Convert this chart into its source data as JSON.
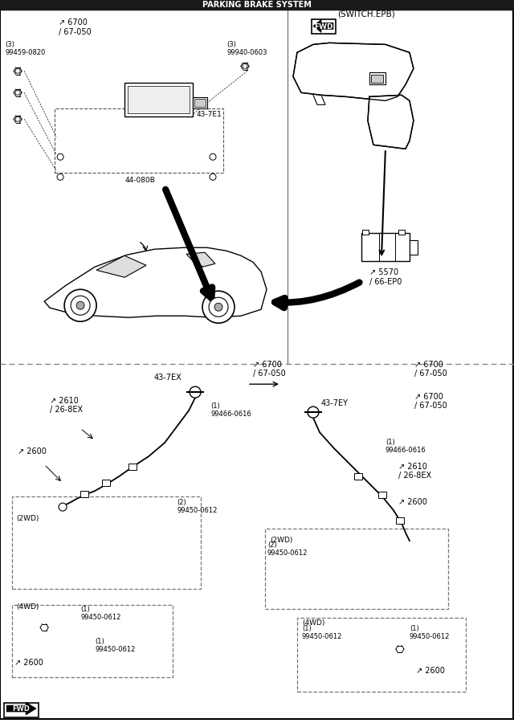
{
  "title": "PARKING BRAKE SYSTEM",
  "bg_color": "#ffffff",
  "line_color": "#000000",
  "header_bg": "#1a1a1a",
  "header_text": "#ffffff",
  "fig_width": 6.4,
  "fig_height": 9.0,
  "labels": {
    "switch_epb": "(SWITCH.EPB)",
    "part_6700_tl": "6700\n/ 67-050",
    "part_5570": "5570\n/ 66-EP0",
    "part_99459": "99459-0820",
    "part_99940": "99940-0603",
    "part_43_7e1": "43-7E1",
    "part_44_080b": "44-080B",
    "part_43_7ex": "43-7EX",
    "part_43_7ey": "43-7EY",
    "part_6700_lc": "6700\n/ 67-050",
    "part_6700_rc1": "6700\n/ 67-050",
    "part_6700_rc2": "6700\n/ 67-050",
    "part_2610_left": "2610\n/ 26-8EX",
    "part_2610_right": "2610\n/ 26-8EX",
    "part_2600_left1": "2600",
    "part_2600_left2": "2600",
    "part_2600_right1": "2600",
    "part_2600_right2": "2600",
    "part_99466_1": "99466-0616",
    "part_99466_2": "99466-0616",
    "part_99450_2wd_left": "99450-0612",
    "part_99450_4wd_left1": "99450-0612",
    "part_99450_4wd_left2": "99450-0612",
    "part_99450_2wd_right": "99450-0612",
    "part_99450_4wd_right1": "99450-0612",
    "part_99450_4wd_right2": "99450-0612",
    "label_2wd_left": "(2WD)",
    "label_4wd_left": "(4WD)",
    "label_2wd_right": "(2WD)",
    "label_4wd_right": "(4WD)"
  }
}
